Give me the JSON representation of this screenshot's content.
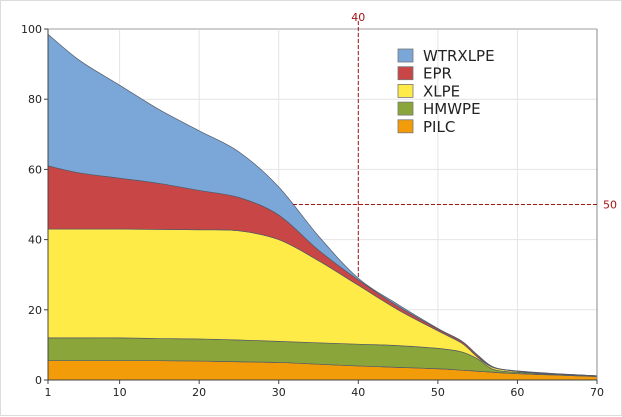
{
  "chart_data": {
    "type": "area",
    "stacked": true,
    "title": "",
    "xlabel": "",
    "ylabel": "",
    "xlim": [
      1,
      70
    ],
    "ylim": [
      0,
      100
    ],
    "xticks": [
      1,
      10,
      20,
      30,
      40,
      50,
      60,
      70
    ],
    "yticks": [
      0,
      20,
      40,
      60,
      80,
      100
    ],
    "grid": true,
    "legend_position": "top-right",
    "x": [
      1,
      5,
      10,
      15,
      20,
      25,
      30,
      35,
      40,
      45,
      50,
      53,
      55,
      57,
      60,
      65,
      70
    ],
    "series": [
      {
        "name": "PILC",
        "color": "#f39c0a",
        "values": [
          5.5,
          5.5,
          5.5,
          5.5,
          5.4,
          5.2,
          5.0,
          4.5,
          4.0,
          3.6,
          3.2,
          2.8,
          2.5,
          2.2,
          1.8,
          1.4,
          1.0
        ]
      },
      {
        "name": "HMWPE",
        "color": "#8aa53a",
        "values": [
          6.5,
          6.5,
          6.5,
          6.3,
          6.3,
          6.2,
          6.0,
          6.1,
          6.2,
          6.2,
          5.8,
          5.2,
          3.5,
          0.8,
          0.4,
          0.2,
          0.2
        ]
      },
      {
        "name": "XLPE",
        "color": "#ffeb47",
        "values": [
          31,
          31,
          31,
          31.1,
          31.1,
          31.1,
          29,
          23.4,
          16.8,
          10.2,
          5,
          2.5,
          0.5,
          0.5,
          0.3,
          0.1,
          0
        ]
      },
      {
        "name": "EPR",
        "color": "#c84646",
        "values": [
          18,
          16,
          14.5,
          13.1,
          11.2,
          9.5,
          7,
          3,
          1.5,
          1,
          0.5,
          0.5,
          0.5,
          0.1,
          0.05,
          0.05,
          0
        ]
      },
      {
        "name": "WTRXLPE",
        "color": "#7aa6d8",
        "values": [
          37.5,
          32,
          26.5,
          21,
          17,
          13,
          8,
          4,
          0.5,
          0.5,
          0.2,
          0.1,
          0.1,
          0.1,
          0.05,
          0.05,
          0
        ]
      }
    ],
    "legend_order": [
      "WTRXLPE",
      "EPR",
      "XLPE",
      "HMWPE",
      "PILC"
    ],
    "reference_lines": {
      "vertical": {
        "x": 40,
        "label": "40"
      },
      "horizontal": {
        "y": 50,
        "label": "50"
      },
      "color": "#a31515"
    }
  }
}
